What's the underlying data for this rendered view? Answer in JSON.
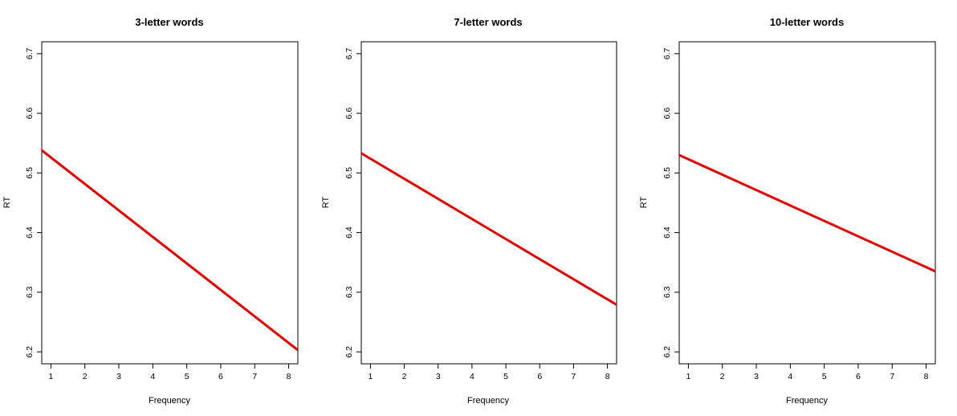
{
  "chart_data": [
    {
      "type": "line",
      "title": "3-letter words",
      "xlabel": "Frequency",
      "ylabel": "RT",
      "xlim": [
        0.73,
        8.27
      ],
      "ylim": [
        6.18,
        6.72
      ],
      "xticks": [
        1,
        2,
        3,
        4,
        5,
        6,
        7,
        8
      ],
      "yticks": [
        6.2,
        6.3,
        6.4,
        6.5,
        6.6,
        6.7
      ],
      "color": "#e00000",
      "grid": false,
      "series": [
        {
          "x": [
            0.73,
            8.27
          ],
          "y": [
            6.538,
            6.203
          ]
        }
      ]
    },
    {
      "type": "line",
      "title": "7-letter words",
      "xlabel": "Frequency",
      "ylabel": "RT",
      "xlim": [
        0.73,
        8.27
      ],
      "ylim": [
        6.18,
        6.72
      ],
      "xticks": [
        1,
        2,
        3,
        4,
        5,
        6,
        7,
        8
      ],
      "yticks": [
        6.2,
        6.3,
        6.4,
        6.5,
        6.6,
        6.7
      ],
      "color": "#e00000",
      "grid": false,
      "series": [
        {
          "x": [
            0.73,
            8.27
          ],
          "y": [
            6.533,
            6.279
          ]
        }
      ]
    },
    {
      "type": "line",
      "title": "10-letter words",
      "xlabel": "Frequency",
      "ylabel": "RT",
      "xlim": [
        0.73,
        8.27
      ],
      "ylim": [
        6.18,
        6.72
      ],
      "xticks": [
        1,
        2,
        3,
        4,
        5,
        6,
        7,
        8
      ],
      "yticks": [
        6.2,
        6.3,
        6.4,
        6.5,
        6.6,
        6.7
      ],
      "color": "#e00000",
      "grid": false,
      "series": [
        {
          "x": [
            0.73,
            8.27
          ],
          "y": [
            6.53,
            6.335
          ]
        }
      ]
    }
  ]
}
